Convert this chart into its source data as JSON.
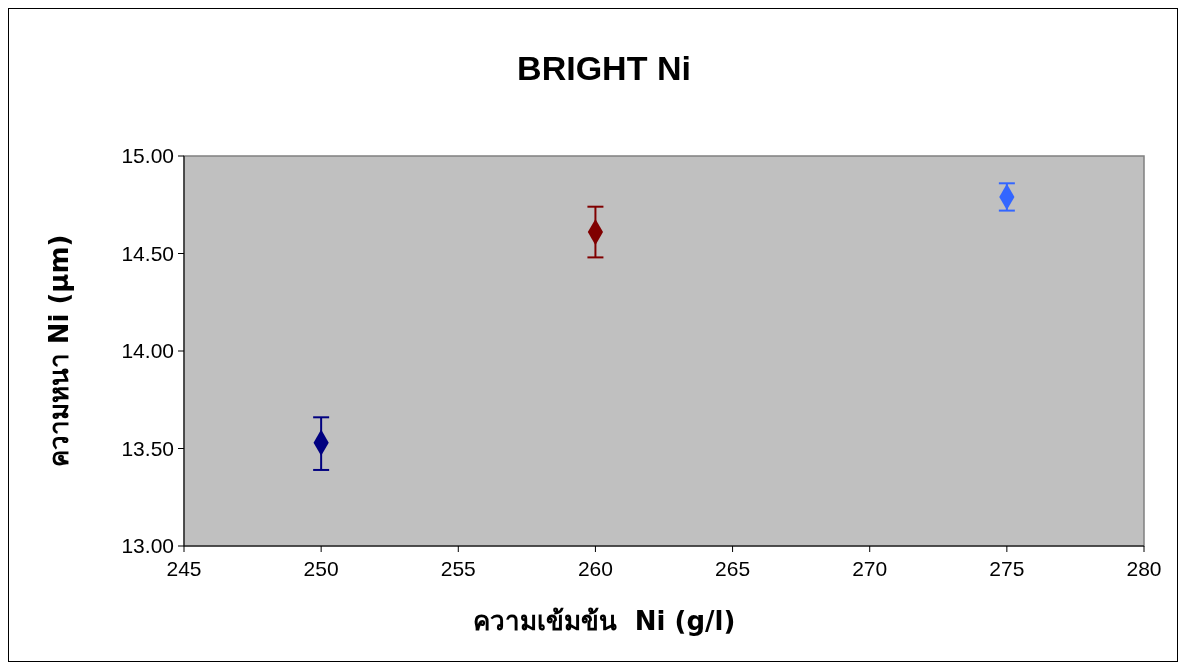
{
  "chart_data": {
    "type": "scatter",
    "title": "BRIGHT Ni",
    "xlabel": "ความเข้มข้น  Ni (g/l)",
    "ylabel": "ความหนา Ni (µm)",
    "x": [
      250,
      260,
      275
    ],
    "values": [
      13.53,
      14.61,
      14.79
    ],
    "colors": [
      "#000080",
      "#800000",
      "#3366ff"
    ],
    "errors": [
      [
        13.39,
        13.66
      ],
      [
        14.48,
        14.74
      ],
      [
        14.72,
        14.86
      ]
    ],
    "marker": "diamond",
    "xlim": [
      245,
      280
    ],
    "xticks": [
      245,
      250,
      255,
      260,
      265,
      270,
      275,
      280
    ],
    "ylim": [
      13,
      15
    ],
    "yticks": [
      {
        "value": 13,
        "label": "13.00"
      },
      {
        "value": 13.5,
        "label": "13.50"
      },
      {
        "value": 14,
        "label": "14.00"
      },
      {
        "value": 14.5,
        "label": "14.50"
      },
      {
        "value": 15,
        "label": "15.00"
      }
    ],
    "grid": false
  }
}
